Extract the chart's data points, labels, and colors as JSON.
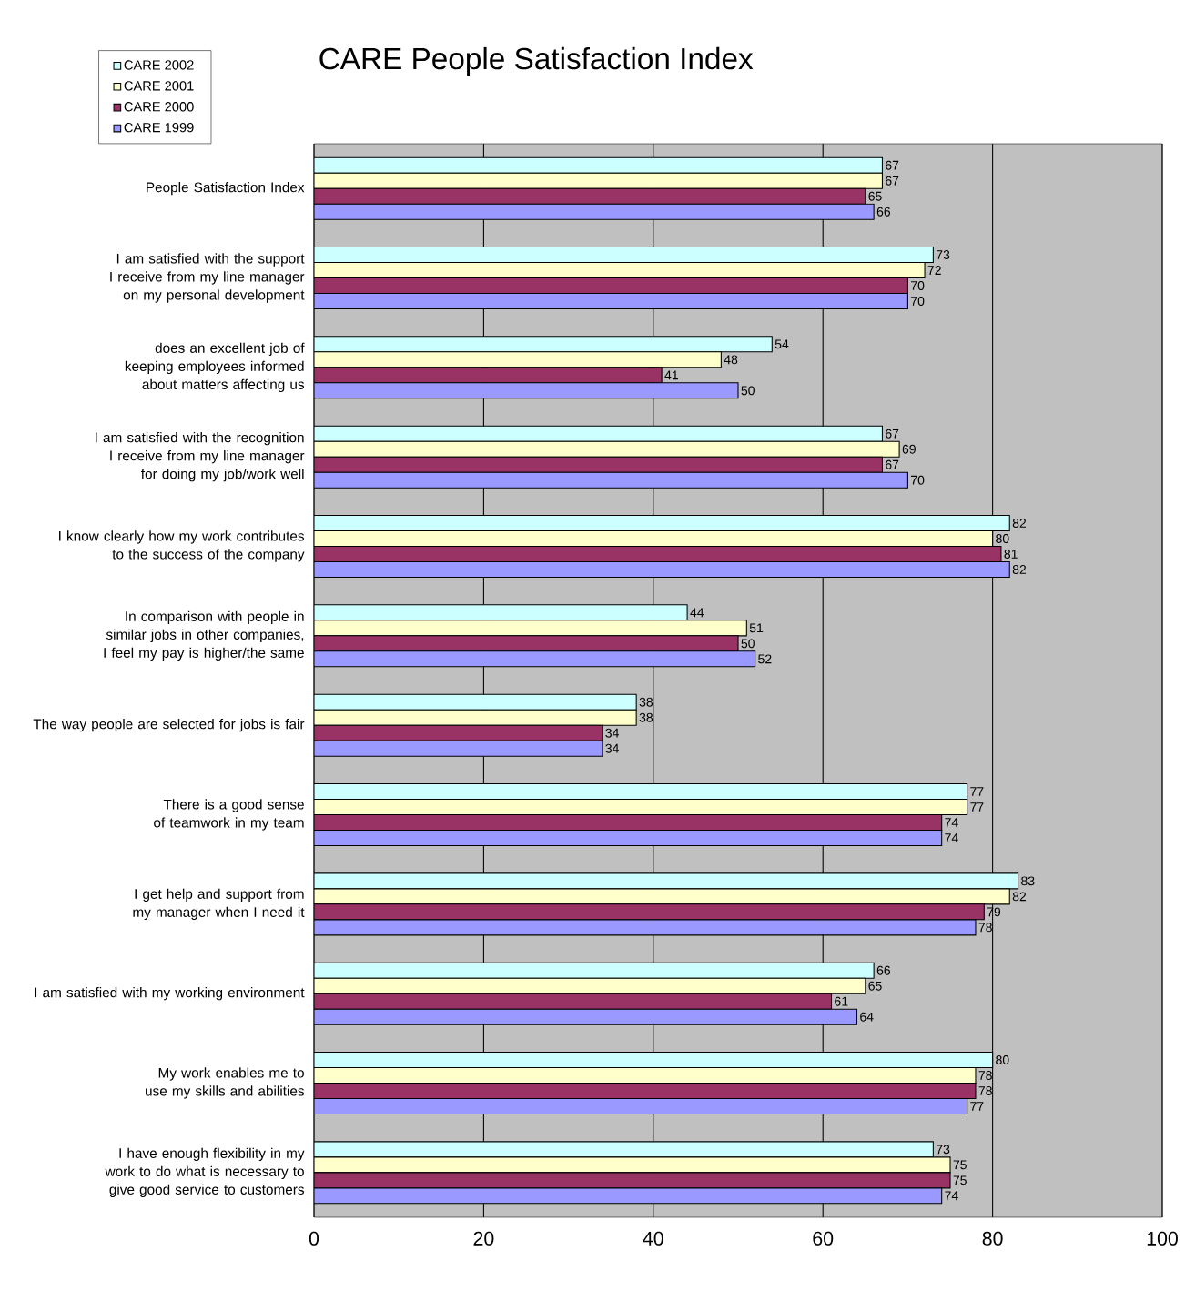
{
  "chart_data": {
    "type": "bar",
    "orientation": "horizontal",
    "title": "CARE People Satisfaction Index",
    "categories": [
      "People Satisfaction Index",
      "I am satisfied with the support I receive from my line manager on my personal development",
      "does an excellent job of keeping employees informed about matters affecting us",
      "I am satisfied with the recognition I receive from my line manager for doing my job/work well",
      "I know clearly how my work contributes to the success of the company",
      "In comparison with people in similar jobs in other companies, I feel my pay is higher/the same",
      "The way people are selected for jobs is fair",
      "There is a good sense of teamwork in my team",
      "I get help and support from my manager when I need it",
      "I am satisfied with my working environment",
      "My work enables me to use my skills and abilities",
      "I have enough flexibility in my work to do what is necessary to give good service to customers"
    ],
    "series": [
      {
        "name": "CARE 2002",
        "color": "#ccffff",
        "values": [
          67,
          73,
          54,
          67,
          82,
          44,
          38,
          77,
          83,
          66,
          80,
          73
        ]
      },
      {
        "name": "CARE 2001",
        "color": "#ffffcc",
        "values": [
          67,
          72,
          48,
          69,
          80,
          51,
          38,
          77,
          82,
          65,
          78,
          75
        ]
      },
      {
        "name": "CARE 2000",
        "color": "#993366",
        "values": [
          65,
          70,
          41,
          67,
          81,
          50,
          34,
          74,
          79,
          61,
          78,
          75
        ]
      },
      {
        "name": "CARE 1999",
        "color": "#9999ff",
        "values": [
          66,
          70,
          50,
          70,
          82,
          52,
          34,
          74,
          78,
          64,
          77,
          74
        ]
      }
    ],
    "xlim": [
      0,
      100
    ],
    "xticks": [
      0,
      20,
      40,
      60,
      80,
      100
    ],
    "grid": "x",
    "legend": "top left",
    "data_labels": true
  }
}
